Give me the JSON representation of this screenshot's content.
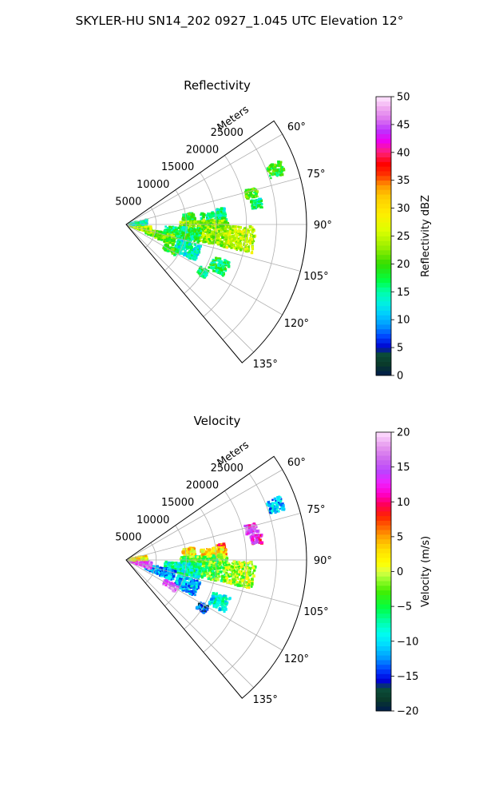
{
  "figure": {
    "suptitle": "SKYLER-HU  SN14_202  0927_1.045 UTC Elevation 12°",
    "radial_axis_label": "Meters",
    "radial_ticks": [
      "5000",
      "10000",
      "15000",
      "20000",
      "25000"
    ],
    "angle_ticks": [
      "60°",
      "75°",
      "90°",
      "105°",
      "120°",
      "135°"
    ]
  },
  "chart_data": [
    {
      "type": "heatmap",
      "projection": "polar sector (PPI)",
      "title": "Reflectivity",
      "theta_range_deg": [
        55,
        140
      ],
      "theta_ticks_deg": [
        60,
        75,
        90,
        105,
        120,
        135
      ],
      "r_range_m": [
        0,
        30000
      ],
      "r_ticks_m": [
        5000,
        10000,
        15000,
        20000,
        25000
      ],
      "radial_axis_label": "Meters",
      "grid": true,
      "colorbar": {
        "label": "Reflectivity dBZ",
        "range": [
          0,
          50
        ],
        "ticks": [
          "0",
          "5",
          "10",
          "15",
          "20",
          "25",
          "30",
          "35",
          "40",
          "45",
          "50"
        ],
        "colormap": "pyart NWSRef-like"
      },
      "echoes": [
        {
          "theta": 70,
          "r": 26500,
          "dtheta": 2.4,
          "dr": 1300,
          "dbz": 19
        },
        {
          "theta": 76,
          "r": 21500,
          "dtheta": 2.0,
          "dr": 1000,
          "dbz": 20
        },
        {
          "theta": 84,
          "r": 16000,
          "dtheta": 3.5,
          "dr": 700,
          "dbz": 14
        },
        {
          "theta": 81,
          "r": 22000,
          "dtheta": 2.0,
          "dr": 900,
          "dbz": 16
        },
        {
          "theta": 83,
          "r": 10500,
          "dtheta": 3.5,
          "dr": 1000,
          "dbz": 18
        },
        {
          "theta": 87,
          "r": 14500,
          "dtheta": 5.0,
          "dr": 2000,
          "dbz": 16
        },
        {
          "theta": 95,
          "r": 13000,
          "dtheta": 8.0,
          "dr": 4000,
          "dbz": 23
        },
        {
          "theta": 97,
          "r": 19000,
          "dtheta": 6.0,
          "dr": 2500,
          "dbz": 25
        },
        {
          "theta": 99,
          "r": 9500,
          "dtheta": 6.0,
          "dr": 3000,
          "dbz": 17
        },
        {
          "theta": 108,
          "r": 6000,
          "dtheta": 6.0,
          "dr": 2500,
          "dbz": 21
        },
        {
          "theta": 112,
          "r": 11000,
          "dtheta": 6.0,
          "dr": 2000,
          "dbz": 14
        },
        {
          "theta": 114,
          "r": 17000,
          "dtheta": 4.0,
          "dr": 1500,
          "dbz": 17
        },
        {
          "theta": 120,
          "r": 8500,
          "dtheta": 3.0,
          "dr": 1200,
          "dbz": 19
        },
        {
          "theta": 122,
          "r": 15000,
          "dtheta": 2.5,
          "dr": 800,
          "dbz": 16
        },
        {
          "theta": 103,
          "r": 2500,
          "dtheta": 8.0,
          "dr": 1800,
          "dbz": 24
        },
        {
          "theta": 84,
          "r": 2000,
          "dtheta": 6.0,
          "dr": 1500,
          "dbz": 14
        }
      ]
    },
    {
      "type": "heatmap",
      "projection": "polar sector (PPI)",
      "title": "Velocity",
      "theta_range_deg": [
        55,
        140
      ],
      "theta_ticks_deg": [
        60,
        75,
        90,
        105,
        120,
        135
      ],
      "r_range_m": [
        0,
        30000
      ],
      "r_ticks_m": [
        5000,
        10000,
        15000,
        20000,
        25000
      ],
      "radial_axis_label": "Meters",
      "grid": true,
      "colorbar": {
        "label": "Velocity (m/s)",
        "range": [
          -20,
          20
        ],
        "ticks": [
          "−20",
          "−15",
          "−10",
          "−5",
          "0",
          "5",
          "10",
          "15",
          "20"
        ],
        "colormap": "pyart NWSVel-like"
      },
      "echoes": [
        {
          "theta": 70,
          "r": 26500,
          "dtheta": 2.4,
          "dr": 1300,
          "vel": -11
        },
        {
          "theta": 76,
          "r": 21500,
          "dtheta": 2.0,
          "dr": 1000,
          "vel": 14
        },
        {
          "theta": 84,
          "r": 16000,
          "dtheta": 3.5,
          "dr": 700,
          "vel": 7
        },
        {
          "theta": 81,
          "r": 22000,
          "dtheta": 2.0,
          "dr": 900,
          "vel": 12
        },
        {
          "theta": 83,
          "r": 10500,
          "dtheta": 3.5,
          "dr": 1000,
          "vel": 3
        },
        {
          "theta": 87,
          "r": 14500,
          "dtheta": 5.0,
          "dr": 2000,
          "vel": 2
        },
        {
          "theta": 95,
          "r": 13000,
          "dtheta": 8.0,
          "dr": 4000,
          "vel": -3
        },
        {
          "theta": 97,
          "r": 19000,
          "dtheta": 6.0,
          "dr": 2500,
          "vel": -1
        },
        {
          "theta": 99,
          "r": 9500,
          "dtheta": 6.0,
          "dr": 3000,
          "vel": -8
        },
        {
          "theta": 108,
          "r": 6000,
          "dtheta": 6.0,
          "dr": 2500,
          "vel": -12
        },
        {
          "theta": 112,
          "r": 11000,
          "dtheta": 6.0,
          "dr": 2000,
          "vel": -11
        },
        {
          "theta": 114,
          "r": 17000,
          "dtheta": 4.0,
          "dr": 1500,
          "vel": -9
        },
        {
          "theta": 120,
          "r": 8500,
          "dtheta": 3.0,
          "dr": 1200,
          "vel": 16
        },
        {
          "theta": 122,
          "r": 15000,
          "dtheta": 2.5,
          "dr": 800,
          "vel": -15
        },
        {
          "theta": 103,
          "r": 2500,
          "dtheta": 8.0,
          "dr": 1800,
          "vel": 15
        },
        {
          "theta": 84,
          "r": 2000,
          "dtheta": 6.0,
          "dr": 1500,
          "vel": 2
        }
      ]
    }
  ]
}
